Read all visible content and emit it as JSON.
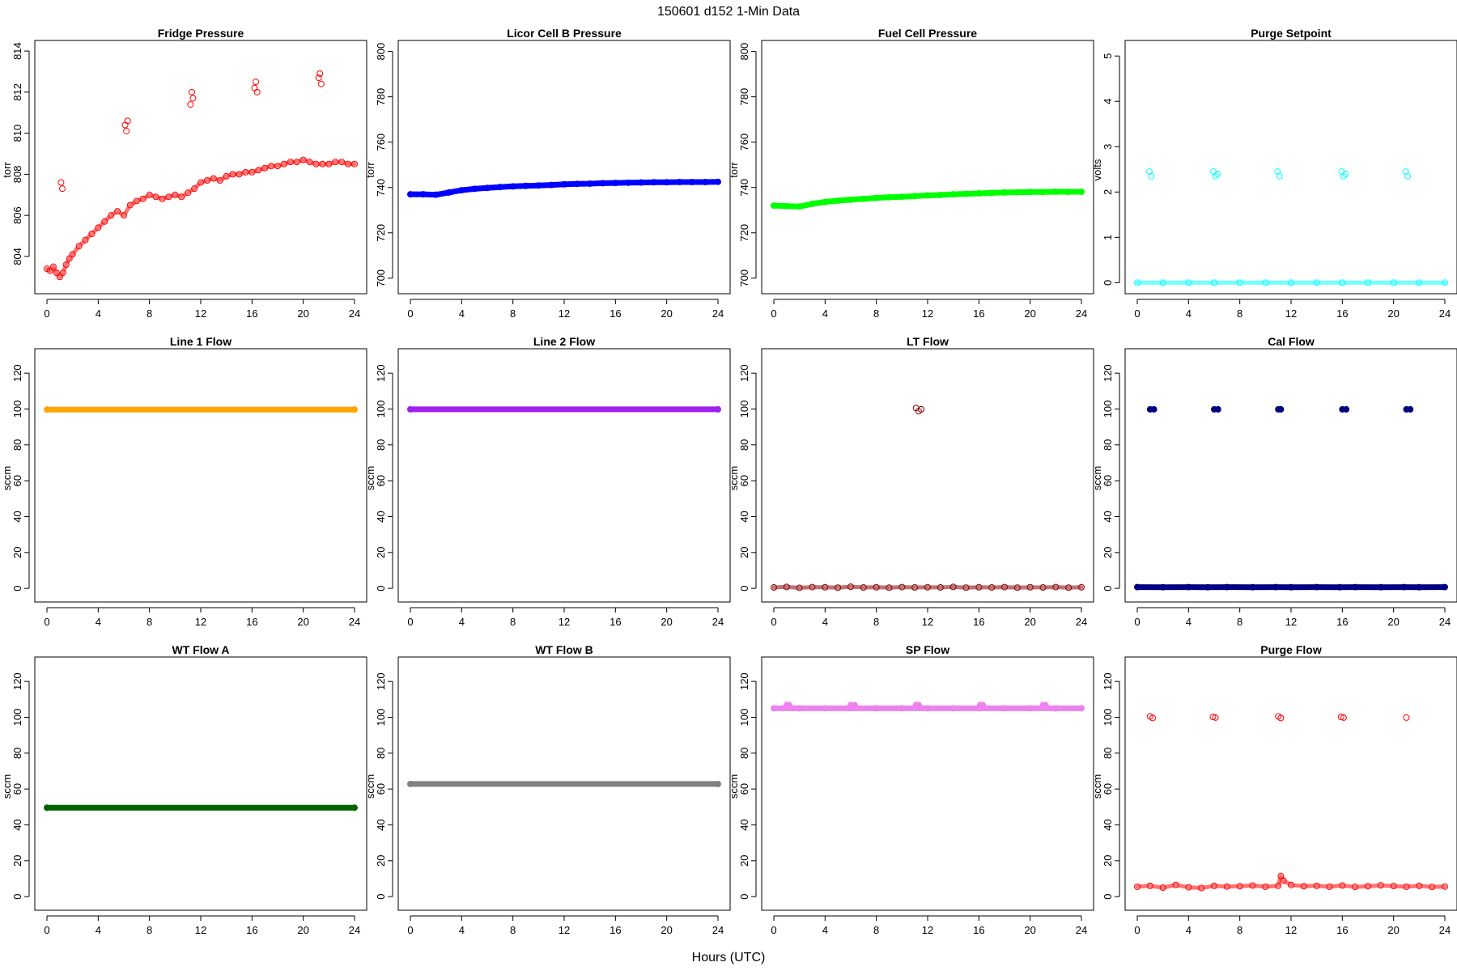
{
  "figure": {
    "title": "150601    d152    1-Min Data",
    "xlabel": "Hours (UTC)"
  },
  "colors": {
    "red": "#ff0000",
    "blue": "#0000ff",
    "green": "#00ff00",
    "cyan": "#00ffff",
    "orange": "#ffa500",
    "purple": "#a020f0",
    "darkred": "#8b0000",
    "navy": "#000080",
    "darkgreen": "#006400",
    "gray": "#808080",
    "violet": "#ee82ee"
  },
  "chart_data": [
    {
      "type": "scatter",
      "title": "Fridge Pressure",
      "ylabel": "torr",
      "xlabel": "",
      "xlim": [
        0,
        24
      ],
      "ylim": [
        802.5,
        814.2
      ],
      "xticks": [
        0,
        4,
        8,
        12,
        16,
        20,
        24
      ],
      "yticks": [
        804,
        806,
        808,
        810,
        812,
        814
      ],
      "marker": "open",
      "color": "#ff0000",
      "series": [
        {
          "x": [
            0,
            0.25,
            0.5,
            0.75,
            1,
            1.25,
            1.5,
            1.75,
            2,
            2.5,
            3,
            3.5,
            4,
            4.5,
            5,
            5.5,
            6,
            6.5,
            7,
            7.5,
            8,
            8.5,
            9,
            9.5,
            10,
            10.5,
            11,
            11.5,
            12,
            12.5,
            13,
            13.5,
            14,
            14.5,
            15,
            15.5,
            16,
            16.5,
            17,
            17.5,
            18,
            18.5,
            19,
            19.5,
            20,
            20.5,
            21,
            21.5,
            22,
            22.5,
            23,
            23.5,
            24,
            1.1,
            1.2,
            6.1,
            6.2,
            6.3,
            11.2,
            11.3,
            11.4,
            16.2,
            16.3,
            16.4,
            21.2,
            21.3,
            21.4
          ],
          "y": [
            803.4,
            803.3,
            803.5,
            803.2,
            803.0,
            803.2,
            803.6,
            803.9,
            804.1,
            804.5,
            804.8,
            805.1,
            805.4,
            805.7,
            806.0,
            806.2,
            806.0,
            806.5,
            806.7,
            806.8,
            807.0,
            806.9,
            806.8,
            806.9,
            807.0,
            806.9,
            807.1,
            807.3,
            807.6,
            807.7,
            807.8,
            807.7,
            807.9,
            808.0,
            808.0,
            808.1,
            808.1,
            808.2,
            808.3,
            808.4,
            808.4,
            808.5,
            808.6,
            808.6,
            808.7,
            808.6,
            808.5,
            808.5,
            808.5,
            808.6,
            808.6,
            808.5,
            808.5,
            807.6,
            807.3,
            810.4,
            810.1,
            810.6,
            811.4,
            812.0,
            811.7,
            812.2,
            812.5,
            812.0,
            812.7,
            812.9,
            812.4
          ]
        }
      ]
    },
    {
      "type": "scatter",
      "title": "Licor Cell B Pressure",
      "ylabel": "torr",
      "xlabel": "",
      "xlim": [
        0,
        24
      ],
      "ylim": [
        696,
        802
      ],
      "xticks": [
        0,
        4,
        8,
        12,
        16,
        20,
        24
      ],
      "yticks": [
        700,
        720,
        740,
        760,
        780,
        800
      ],
      "marker": "filled",
      "color": "#0000ff",
      "series": [
        {
          "x": [
            0,
            1,
            2,
            3,
            4,
            5,
            6,
            7,
            8,
            9,
            10,
            11,
            12,
            13,
            14,
            15,
            16,
            17,
            18,
            19,
            20,
            21,
            22,
            23,
            24
          ],
          "y": [
            737.0,
            737.0,
            736.8,
            737.8,
            738.8,
            739.4,
            739.8,
            740.2,
            740.5,
            740.7,
            740.9,
            741.1,
            741.4,
            741.6,
            741.7,
            741.9,
            742.0,
            742.1,
            742.2,
            742.3,
            742.3,
            742.4,
            742.4,
            742.4,
            742.5
          ]
        }
      ]
    },
    {
      "type": "scatter",
      "title": "Fuel Cell Pressure",
      "ylabel": "torr",
      "xlabel": "",
      "xlim": [
        0,
        24
      ],
      "ylim": [
        696,
        802
      ],
      "xticks": [
        0,
        4,
        8,
        12,
        16,
        20,
        24
      ],
      "yticks": [
        700,
        720,
        740,
        760,
        780,
        800
      ],
      "marker": "filled",
      "color": "#00ff00",
      "series": [
        {
          "x": [
            0,
            1,
            2,
            3,
            4,
            5,
            6,
            7,
            8,
            9,
            10,
            11,
            12,
            13,
            14,
            15,
            16,
            17,
            18,
            19,
            20,
            21,
            22,
            23,
            24
          ],
          "y": [
            732.0,
            731.8,
            731.6,
            732.8,
            733.6,
            734.2,
            734.6,
            735.0,
            735.4,
            735.7,
            735.9,
            736.2,
            736.5,
            736.7,
            737.0,
            737.2,
            737.4,
            737.6,
            737.8,
            737.9,
            738.0,
            738.0,
            738.1,
            738.1,
            738.1
          ]
        }
      ]
    },
    {
      "type": "scatter",
      "title": "Purge Setpoint",
      "ylabel": "volts",
      "xlabel": "",
      "xlim": [
        0,
        24
      ],
      "ylim": [
        -0.1,
        5.2
      ],
      "xticks": [
        0,
        4,
        8,
        12,
        16,
        20,
        24
      ],
      "yticks": [
        0,
        1,
        2,
        3,
        4,
        5
      ],
      "marker": "open",
      "color": "#00ffff",
      "series": [
        {
          "x": [
            0,
            2,
            4,
            6,
            8,
            10,
            12,
            14,
            16,
            18,
            20,
            22,
            24,
            0.95,
            1.1,
            5.95,
            6.1,
            6.25,
            10.95,
            11.1,
            15.95,
            16.1,
            16.25,
            20.95,
            21.1
          ],
          "y": [
            0,
            0,
            0,
            0,
            0,
            0,
            0,
            0,
            0,
            0,
            0,
            0,
            0,
            2.45,
            2.35,
            2.45,
            2.35,
            2.4,
            2.45,
            2.35,
            2.45,
            2.35,
            2.4,
            2.45,
            2.35
          ]
        }
      ]
    },
    {
      "type": "scatter",
      "title": "Line 1 Flow",
      "ylabel": "sccm",
      "xlabel": "",
      "xlim": [
        0,
        24
      ],
      "ylim": [
        -4,
        130
      ],
      "xticks": [
        0,
        4,
        8,
        12,
        16,
        20,
        24
      ],
      "yticks": [
        0,
        20,
        40,
        60,
        80,
        100,
        120
      ],
      "marker": "filled",
      "color": "#ffa500",
      "series": [
        {
          "x": [
            0,
            24
          ],
          "y": [
            99.7,
            99.7
          ]
        }
      ]
    },
    {
      "type": "scatter",
      "title": "Line 2 Flow",
      "ylabel": "sccm",
      "xlabel": "",
      "xlim": [
        0,
        24
      ],
      "ylim": [
        -4,
        130
      ],
      "xticks": [
        0,
        4,
        8,
        12,
        16,
        20,
        24
      ],
      "yticks": [
        0,
        20,
        40,
        60,
        80,
        100,
        120
      ],
      "marker": "filled",
      "color": "#a020f0",
      "series": [
        {
          "x": [
            0,
            24
          ],
          "y": [
            99.8,
            99.8
          ]
        }
      ]
    },
    {
      "type": "scatter",
      "title": "LT Flow",
      "ylabel": "sccm",
      "xlabel": "",
      "xlim": [
        0,
        24
      ],
      "ylim": [
        -4,
        130
      ],
      "xticks": [
        0,
        4,
        8,
        12,
        16,
        20,
        24
      ],
      "yticks": [
        0,
        20,
        40,
        60,
        80,
        100,
        120
      ],
      "marker": "open",
      "color": "#8b0000",
      "series": [
        {
          "x": [
            0,
            1,
            2,
            3,
            4,
            5,
            6,
            7,
            8,
            9,
            10,
            11,
            12,
            13,
            14,
            15,
            16,
            17,
            18,
            19,
            20,
            21,
            22,
            23,
            24,
            11.1,
            11.3,
            11.5
          ],
          "y": [
            0.5,
            0.8,
            0.3,
            0.7,
            0.6,
            0.4,
            0.9,
            0.5,
            0.6,
            0.4,
            0.7,
            0.5,
            0.6,
            0.5,
            0.8,
            0.4,
            0.6,
            0.5,
            0.7,
            0.4,
            0.6,
            0.5,
            0.7,
            0.4,
            0.6,
            100.5,
            98.8,
            99.8
          ]
        }
      ]
    },
    {
      "type": "scatter",
      "title": "Cal Flow",
      "ylabel": "sccm",
      "xlabel": "",
      "xlim": [
        0,
        24
      ],
      "ylim": [
        -4,
        130
      ],
      "xticks": [
        0,
        4,
        8,
        12,
        16,
        20,
        24
      ],
      "yticks": [
        0,
        20,
        40,
        60,
        80,
        100,
        120
      ],
      "marker": "filled",
      "color": "#000080",
      "series": [
        {
          "x": [
            0,
            2,
            4,
            5.5,
            7,
            9,
            10.8,
            12,
            14,
            15.8,
            17,
            19,
            20.8,
            22,
            24,
            1.0,
            1.3,
            6.0,
            6.3,
            11.0,
            11.2,
            16.0,
            16.3,
            21.0,
            21.3
          ],
          "y": [
            0.7,
            0.6,
            0.7,
            0.6,
            0.7,
            0.6,
            0.7,
            0.6,
            0.7,
            0.6,
            0.7,
            0.6,
            0.7,
            0.6,
            0.7,
            99.8,
            99.8,
            99.8,
            99.8,
            99.8,
            99.8,
            99.8,
            99.8,
            99.8,
            99.8
          ]
        }
      ]
    },
    {
      "type": "scatter",
      "title": "WT Flow A",
      "ylabel": "sccm",
      "xlabel": "",
      "xlim": [
        0,
        24
      ],
      "ylim": [
        -4,
        130
      ],
      "xticks": [
        0,
        4,
        8,
        12,
        16,
        20,
        24
      ],
      "yticks": [
        0,
        20,
        40,
        60,
        80,
        100,
        120
      ],
      "marker": "filled",
      "color": "#006400",
      "series": [
        {
          "x": [
            0,
            24
          ],
          "y": [
            49.6,
            49.6
          ]
        }
      ]
    },
    {
      "type": "scatter",
      "title": "WT Flow B",
      "ylabel": "sccm",
      "xlabel": "",
      "xlim": [
        0,
        24
      ],
      "ylim": [
        -4,
        130
      ],
      "xticks": [
        0,
        4,
        8,
        12,
        16,
        20,
        24
      ],
      "yticks": [
        0,
        20,
        40,
        60,
        80,
        100,
        120
      ],
      "marker": "filled",
      "color": "#808080",
      "series": [
        {
          "x": [
            0,
            24
          ],
          "y": [
            62.8,
            62.8
          ]
        }
      ]
    },
    {
      "type": "scatter",
      "title": "SP Flow",
      "ylabel": "sccm",
      "xlabel": "",
      "xlim": [
        0,
        24
      ],
      "ylim": [
        -4,
        130
      ],
      "xticks": [
        0,
        4,
        8,
        12,
        16,
        20,
        24
      ],
      "yticks": [
        0,
        20,
        40,
        60,
        80,
        100,
        120
      ],
      "marker": "filled",
      "color": "#ee82ee",
      "series": [
        {
          "x": [
            0,
            2,
            4,
            6,
            8,
            10,
            12,
            14,
            16,
            18,
            20,
            22,
            24,
            1.0,
            1.2,
            6.0,
            6.3,
            11.1,
            11.3,
            16.1,
            16.3,
            21.0,
            21.2
          ],
          "y": [
            105,
            105,
            105,
            105,
            105,
            105,
            105,
            105,
            105,
            105,
            105,
            105,
            105,
            106.8,
            106.8,
            106.8,
            106.8,
            106.8,
            106.8,
            106.8,
            106.8,
            106.8,
            106.8
          ]
        }
      ]
    },
    {
      "type": "scatter",
      "title": "Purge Flow",
      "ylabel": "sccm",
      "xlabel": "",
      "xlim": [
        0,
        24
      ],
      "ylim": [
        -4,
        130
      ],
      "xticks": [
        0,
        4,
        8,
        12,
        16,
        20,
        24
      ],
      "yticks": [
        0,
        20,
        40,
        60,
        80,
        100,
        120
      ],
      "marker": "open",
      "color": "#ff0000",
      "series": [
        {
          "x": [
            0,
            1,
            2,
            3,
            4,
            5,
            6,
            7,
            8,
            9,
            10,
            11,
            11.2,
            11.4,
            12,
            13,
            14,
            15,
            16,
            17,
            18,
            19,
            20,
            21,
            22,
            23,
            24,
            1.0,
            1.2,
            5.9,
            6.1,
            11.0,
            11.2,
            15.9,
            16.1,
            21.0
          ],
          "y": [
            5.5,
            6.0,
            5.0,
            6.5,
            5.2,
            4.8,
            6.0,
            5.6,
            5.8,
            6.2,
            5.5,
            6.0,
            11.5,
            9.0,
            6.5,
            5.8,
            6.0,
            5.5,
            6.2,
            5.4,
            5.8,
            6.3,
            5.9,
            5.5,
            6.0,
            5.4,
            5.6,
            100.5,
            99.6,
            100.2,
            99.8,
            100.5,
            99.6,
            100.2,
            99.8,
            99.8
          ]
        }
      ]
    }
  ]
}
